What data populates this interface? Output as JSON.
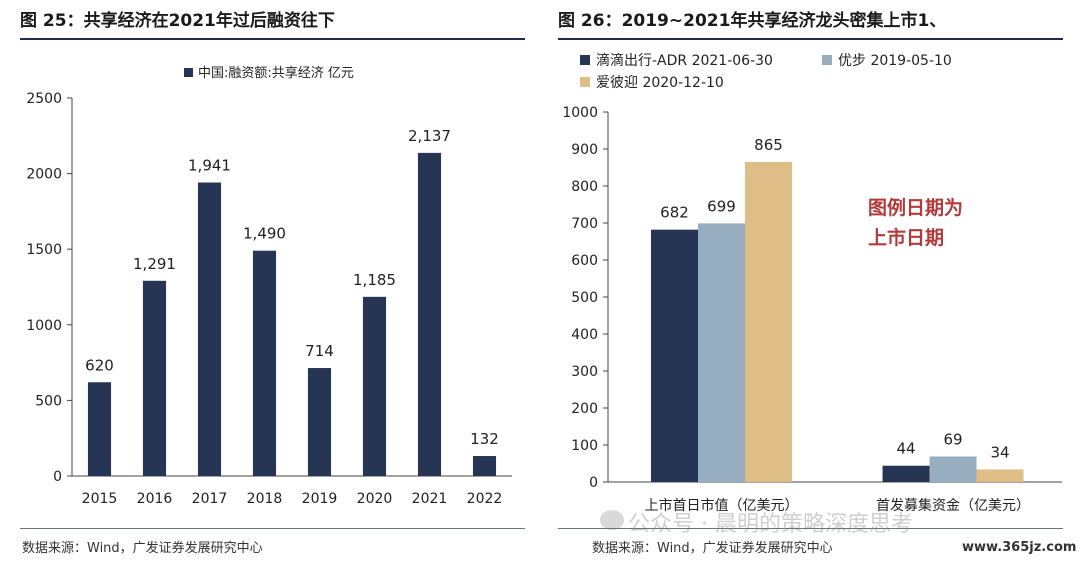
{
  "left_panel": {
    "title": "图 25：共享经济在2021年过后融资往下",
    "source": "数据来源：Wind，广发证券发展研究中心"
  },
  "right_panel": {
    "title": "图 26：2019~2021年共享经济龙头密集上市1、",
    "source": "数据来源：Wind，广发证券发展研究中心",
    "annotation_line1": "图例日期为",
    "annotation_line2": "上市日期"
  },
  "watermark": "公众号 · 晨明的策略深度思考",
  "site": "www.365jz.com",
  "colors": {
    "navy": "#253553",
    "gray_blue": "#97aec1",
    "tan": "#dfbd86",
    "annotation_red": "#b33a3a"
  },
  "chart_data": [
    {
      "type": "bar",
      "title": "",
      "categories": [
        "2015",
        "2016",
        "2017",
        "2018",
        "2019",
        "2020",
        "2021",
        "2022"
      ],
      "series": [
        {
          "name": "中国:融资额:共享经济 亿元",
          "values": [
            620,
            1291,
            1941,
            1490,
            714,
            1185,
            2137,
            132
          ],
          "labels": [
            "620",
            "1,291",
            "1,941",
            "1,490",
            "714",
            "1,185",
            "2,137",
            "132"
          ]
        }
      ],
      "ylim": [
        0,
        2500
      ],
      "yticks": [
        "0",
        "500",
        "1000",
        "1500",
        "2000",
        "2500"
      ],
      "ytick_values": [
        0,
        500,
        1000,
        1500,
        2000,
        2500
      ],
      "legend": "top-center",
      "grid": false
    },
    {
      "type": "bar",
      "title": "",
      "categories": [
        "上市首日市值（亿美元）",
        "首发募集资金（亿美元）"
      ],
      "series": [
        {
          "name": "滴滴出行-ADR 2021-06-30",
          "values": [
            682,
            44
          ],
          "labels": [
            "682",
            "44"
          ]
        },
        {
          "name": "优步 2019-05-10",
          "values": [
            699,
            69
          ],
          "labels": [
            "699",
            "69"
          ]
        },
        {
          "name": "爱彼迎 2020-12-10",
          "values": [
            865,
            34
          ],
          "labels": [
            "865",
            "34"
          ]
        }
      ],
      "ylim": [
        0,
        1000
      ],
      "yticks": [
        "0",
        "100",
        "200",
        "300",
        "400",
        "500",
        "600",
        "700",
        "800",
        "900",
        "1000"
      ],
      "ytick_values": [
        0,
        100,
        200,
        300,
        400,
        500,
        600,
        700,
        800,
        900,
        1000
      ],
      "legend": "top-left",
      "grid": false
    }
  ]
}
